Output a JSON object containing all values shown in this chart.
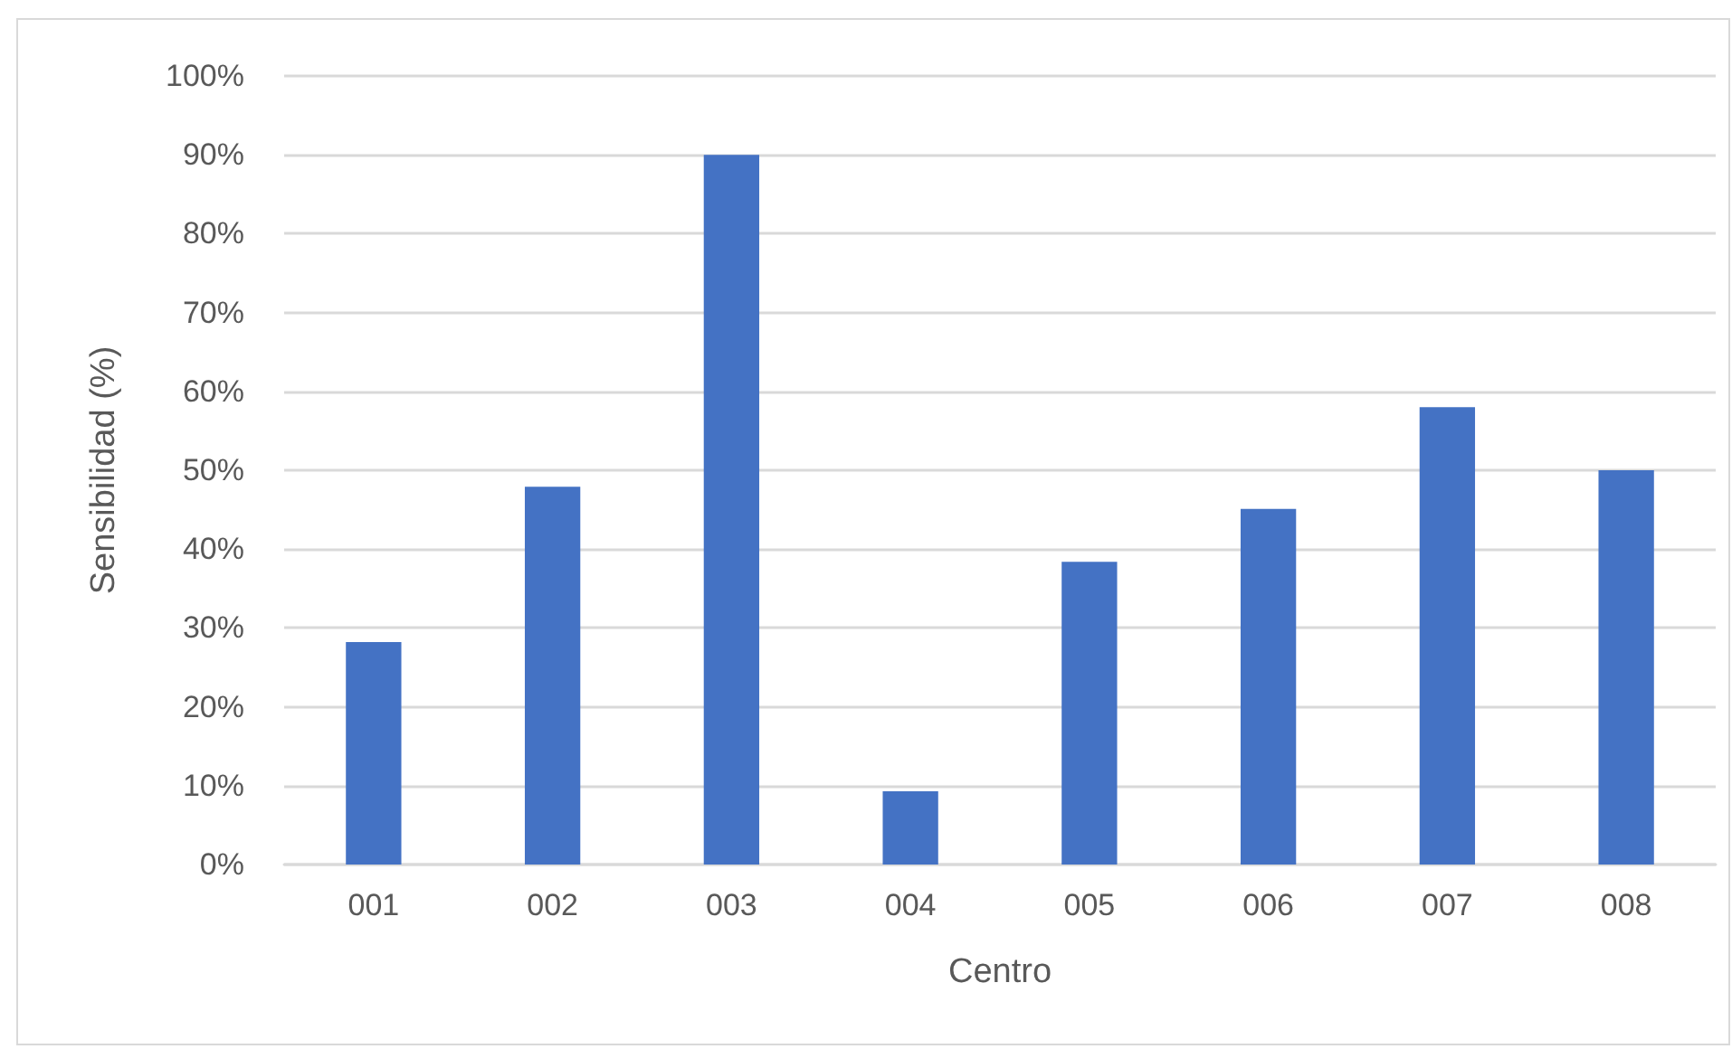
{
  "chart_data": {
    "type": "bar",
    "xlabel": "Centro",
    "ylabel": "Sensibilidad (%)",
    "categories": [
      "001",
      "002",
      "003",
      "004",
      "005",
      "006",
      "007",
      "008"
    ],
    "values": [
      28.2,
      47.9,
      90,
      9.3,
      38.4,
      45.1,
      58,
      50
    ],
    "color": "#4472c4",
    "ylim": [
      0,
      100
    ],
    "yticks": [
      {
        "value": 0,
        "label": "0%"
      },
      {
        "value": 10,
        "label": "10%"
      },
      {
        "value": 20,
        "label": "20%"
      },
      {
        "value": 30,
        "label": "30%"
      },
      {
        "value": 40,
        "label": "40%"
      },
      {
        "value": 50,
        "label": "50%"
      },
      {
        "value": 60,
        "label": "60%"
      },
      {
        "value": 70,
        "label": "70%"
      },
      {
        "value": 80,
        "label": "80%"
      },
      {
        "value": 90,
        "label": "90%"
      },
      {
        "value": 100,
        "label": "100%"
      }
    ],
    "grid": "y"
  }
}
